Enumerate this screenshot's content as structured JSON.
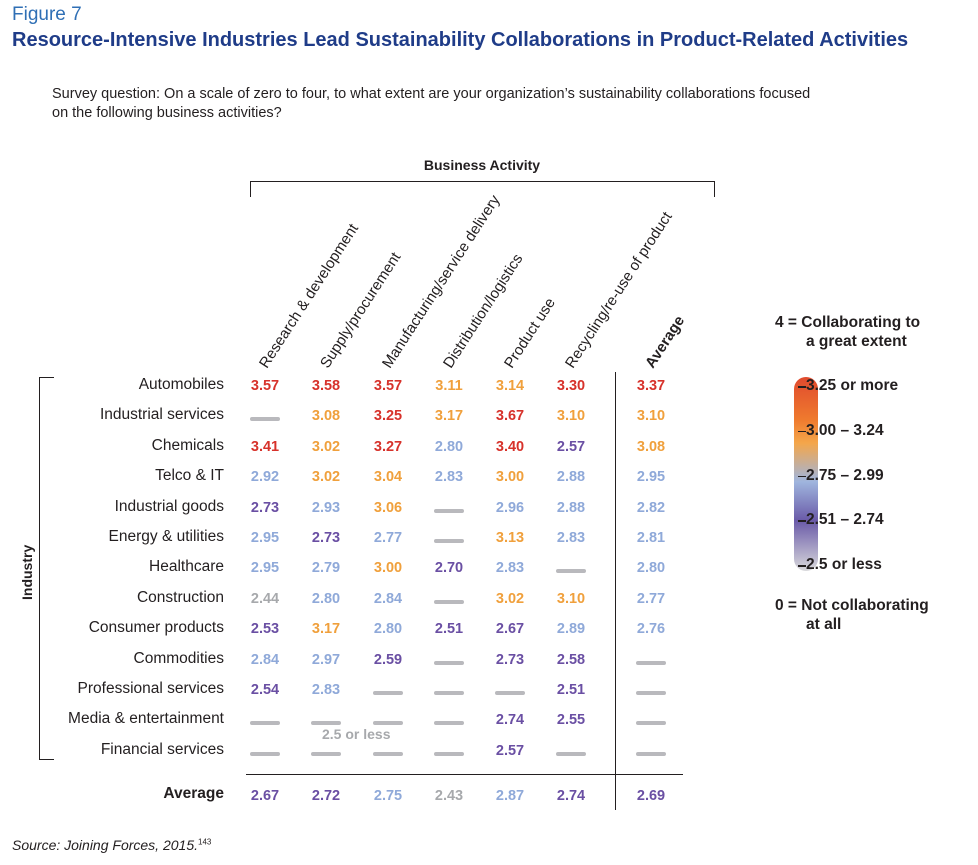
{
  "figure_label": "Figure 7",
  "title": "Resource-Intensive Industries Lead Sustainability Collaborations in Product-Related Activities",
  "question": "Survey question: On a scale of zero to four, to what extent are your organization’s sustainability collaborations focused on the following business activities?",
  "source": "Source: Joining Forces, 2015.",
  "source_ref": "143",
  "colors": {
    "tier_325_plus": "#d7322b",
    "tier_300_324": "#f0a03c",
    "tier_275_299": "#8fa9d9",
    "tier_251_274": "#6a4fa3",
    "tier_250_less": "#a7a9ac"
  },
  "chart_data": {
    "type": "table",
    "title": "Resource-Intensive Industries Lead Sustainability Collaborations in Product-Related Activities",
    "column_group_label": "Business Activity",
    "row_group_label": "Industry",
    "columns": [
      "Research & development",
      "Supply/procurement",
      "Manufacturing/service delivery",
      "Distribution/logistics",
      "Product use",
      "Recycling/re-use of product",
      "Average"
    ],
    "rows": [
      {
        "industry": "Automobiles",
        "values": [
          3.57,
          3.58,
          3.57,
          3.11,
          3.14,
          3.3,
          3.37
        ]
      },
      {
        "industry": "Industrial services",
        "values": [
          null,
          3.08,
          3.25,
          3.17,
          3.67,
          3.1,
          3.1
        ]
      },
      {
        "industry": "Chemicals",
        "values": [
          3.41,
          3.02,
          3.27,
          2.8,
          3.4,
          2.57,
          3.08
        ]
      },
      {
        "industry": "Telco & IT",
        "values": [
          2.92,
          3.02,
          3.04,
          2.83,
          3.0,
          2.88,
          2.95
        ]
      },
      {
        "industry": "Industrial goods",
        "values": [
          2.73,
          2.93,
          3.06,
          null,
          2.96,
          2.88,
          2.82
        ]
      },
      {
        "industry": "Energy & utilities",
        "values": [
          2.95,
          2.73,
          2.77,
          null,
          3.13,
          2.83,
          2.81
        ]
      },
      {
        "industry": "Healthcare",
        "values": [
          2.95,
          2.79,
          3.0,
          2.7,
          2.83,
          null,
          2.8
        ]
      },
      {
        "industry": "Construction",
        "values": [
          2.44,
          2.8,
          2.84,
          null,
          3.02,
          3.1,
          2.77
        ]
      },
      {
        "industry": "Consumer products",
        "values": [
          2.53,
          3.17,
          2.8,
          2.51,
          2.67,
          2.89,
          2.76
        ]
      },
      {
        "industry": "Commodities",
        "values": [
          2.84,
          2.97,
          2.59,
          null,
          2.73,
          2.58,
          null
        ]
      },
      {
        "industry": "Professional services",
        "values": [
          2.54,
          2.83,
          null,
          null,
          null,
          2.51,
          null
        ]
      },
      {
        "industry": "Media & entertainment",
        "values": [
          null,
          null,
          null,
          null,
          2.74,
          2.55,
          null
        ]
      },
      {
        "industry": "Financial services",
        "values": [
          null,
          null,
          null,
          null,
          2.57,
          null,
          null
        ]
      }
    ],
    "average_row": {
      "label": "Average",
      "values": [
        2.67,
        2.72,
        2.75,
        2.43,
        2.87,
        2.74,
        2.69
      ]
    },
    "dash_note": "2.5 or less",
    "legend": {
      "top": "4 = Collaborating to\na great extent",
      "tiers": [
        "3.25 or more",
        "3.00 – 3.24",
        "2.75 – 2.99",
        "2.51 – 2.74",
        "2.5 or less"
      ],
      "bottom": "0 = Not collaborating\nat all"
    }
  }
}
